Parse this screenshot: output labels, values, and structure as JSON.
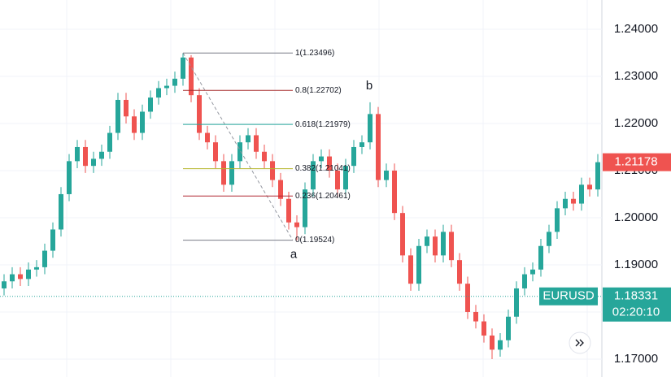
{
  "chart_data": {
    "type": "candlestick",
    "up_color": "#26a69a",
    "down_color": "#ef5350",
    "open": [
      1.185,
      1.1865,
      1.188,
      1.187,
      1.189,
      1.1895,
      1.193,
      1.1975,
      1.205,
      1.212,
      1.215,
      1.211,
      1.2125,
      1.214,
      1.218,
      1.225,
      1.2215,
      1.218,
      1.2225,
      1.2255,
      1.2275,
      1.228,
      1.2295,
      1.234,
      1.226,
      1.218,
      1.216,
      1.212,
      1.207,
      1.212,
      1.216,
      1.2175,
      1.214,
      1.212,
      1.208,
      1.204,
      1.199,
      1.198,
      1.206,
      1.212,
      1.213,
      1.21,
      1.206,
      1.211,
      1.215,
      1.216,
      1.222,
      1.208,
      1.21,
      1.201,
      1.192,
      1.186,
      1.194,
      1.196,
      1.192,
      1.197,
      1.191,
      1.186,
      1.18,
      1.178,
      1.175,
      1.172,
      1.174,
      1.179,
      1.185,
      1.188,
      1.189,
      1.194,
      1.197,
      1.202,
      1.204,
      1.203,
      1.207,
      1.206
    ],
    "high": [
      1.188,
      1.1895,
      1.1895,
      1.1905,
      1.191,
      1.1945,
      1.199,
      1.2065,
      1.2135,
      1.2165,
      1.2165,
      1.214,
      1.2155,
      1.2195,
      1.2265,
      1.2265,
      1.223,
      1.224,
      1.227,
      1.229,
      1.2295,
      1.231,
      1.23496,
      1.2345,
      1.2275,
      1.2195,
      1.2175,
      1.2135,
      1.2135,
      1.2175,
      1.219,
      1.219,
      1.2155,
      1.2135,
      1.2095,
      1.2055,
      1.2005,
      1.2075,
      1.2135,
      1.2145,
      1.2145,
      1.2115,
      1.2125,
      1.2165,
      1.2175,
      1.2245,
      1.2235,
      1.2115,
      1.2115,
      1.2025,
      1.1935,
      1.1955,
      1.1975,
      1.1975,
      1.1985,
      1.1985,
      1.1925,
      1.1875,
      1.1815,
      1.1795,
      1.1765,
      1.1755,
      1.1805,
      1.1865,
      1.1895,
      1.1905,
      1.1955,
      1.1985,
      1.2035,
      1.2055,
      1.2055,
      1.2085,
      1.2085,
      1.2135
    ],
    "low": [
      1.1835,
      1.185,
      1.1855,
      1.1855,
      1.1875,
      1.188,
      1.1915,
      1.196,
      1.2035,
      1.2105,
      1.2095,
      1.2095,
      1.211,
      1.2125,
      1.2165,
      1.22,
      1.2165,
      1.2165,
      1.221,
      1.224,
      1.226,
      1.2265,
      1.228,
      1.2245,
      1.2165,
      1.2145,
      1.2105,
      1.2055,
      1.2055,
      1.2105,
      1.2145,
      1.2125,
      1.2105,
      1.2065,
      1.2025,
      1.1975,
      1.19524,
      1.1965,
      1.2045,
      1.2105,
      1.2085,
      1.2045,
      1.2045,
      1.2095,
      1.2135,
      1.2145,
      1.2065,
      1.2065,
      1.1995,
      1.1905,
      1.1845,
      1.1845,
      1.1925,
      1.1905,
      1.1905,
      1.1895,
      1.1845,
      1.1785,
      1.1765,
      1.1735,
      1.17,
      1.1705,
      1.1725,
      1.1775,
      1.1835,
      1.1865,
      1.1875,
      1.1925,
      1.1955,
      1.2005,
      1.2015,
      1.2015,
      1.2045,
      1.2045
    ],
    "close": [
      1.1865,
      1.188,
      1.187,
      1.189,
      1.1895,
      1.193,
      1.1975,
      1.205,
      1.212,
      1.215,
      1.211,
      1.2125,
      1.214,
      1.218,
      1.225,
      1.2215,
      1.218,
      1.2225,
      1.2255,
      1.2275,
      1.228,
      1.2295,
      1.234,
      1.226,
      1.218,
      1.216,
      1.212,
      1.207,
      1.212,
      1.216,
      1.2175,
      1.214,
      1.212,
      1.208,
      1.204,
      1.199,
      1.198,
      1.206,
      1.212,
      1.213,
      1.21,
      1.206,
      1.211,
      1.215,
      1.216,
      1.222,
      1.208,
      1.21,
      1.201,
      1.192,
      1.186,
      1.194,
      1.196,
      1.192,
      1.197,
      1.191,
      1.186,
      1.18,
      1.178,
      1.175,
      1.172,
      1.174,
      1.179,
      1.185,
      1.188,
      1.189,
      1.194,
      1.197,
      1.202,
      1.204,
      1.203,
      1.207,
      1.206,
      1.21178
    ],
    "ylim": [
      1.1662,
      1.2462
    ],
    "yticks": [
      {
        "value": 1.17,
        "label": "1.17000"
      },
      {
        "value": 1.18,
        "label": "1.18000"
      },
      {
        "value": 1.19,
        "label": "1.19000"
      },
      {
        "value": 1.2,
        "label": "1.20000"
      },
      {
        "value": 1.21,
        "label": "1.21000"
      },
      {
        "value": 1.22,
        "label": "1.22000"
      },
      {
        "value": 1.23,
        "label": "1.23000"
      },
      {
        "value": 1.24,
        "label": "1.24000"
      }
    ],
    "grid": true,
    "fib_levels": [
      {
        "value": 1.23496,
        "label": "1(1.23496)",
        "color": "#787b86"
      },
      {
        "value": 1.22702,
        "label": "0.8(1.22702)",
        "color": "#a52a2a"
      },
      {
        "value": 1.21979,
        "label": "0.618(1.21979)",
        "color": "#26a69a"
      },
      {
        "value": 1.21041,
        "label": "0.382(1.21041)",
        "color": "#b5b52a"
      },
      {
        "value": 1.20461,
        "label": "0.236(1.20461)",
        "color": "#b22833"
      },
      {
        "value": 1.19524,
        "label": "0(1.19524)",
        "color": "#787b86"
      }
    ],
    "annotations": [
      {
        "text": "a",
        "value": 1.19524
      },
      {
        "text": "b",
        "value": 1.2245
      }
    ],
    "symbol": "EURUSD",
    "reference_price": 1.18331,
    "countdown": "02:20:10"
  }
}
